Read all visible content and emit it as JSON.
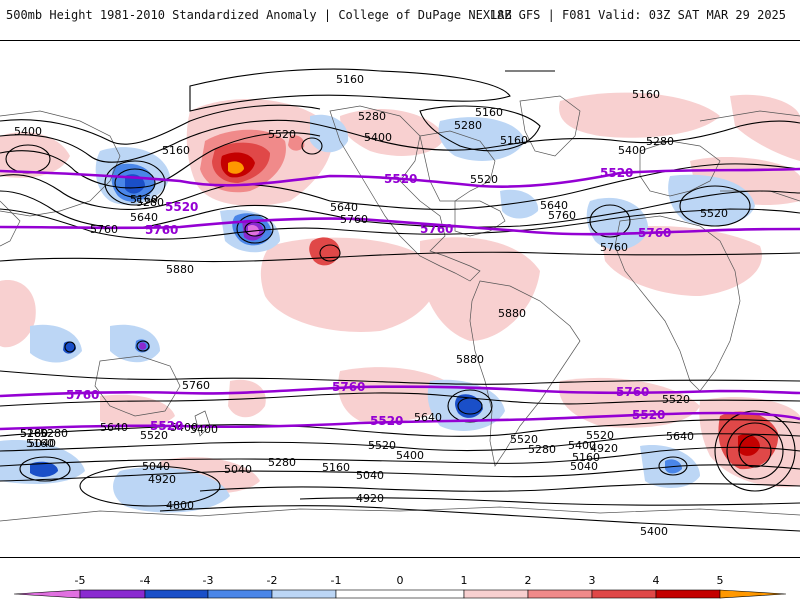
{
  "header": {
    "title": "500mb Height 1981-2010 Standardized Anomaly | College of DuPage NEXLAB",
    "run": "18Z GFS | F081 Valid: 03Z SAT MAR 29 2025"
  },
  "colors": {
    "neg5": "#e070e0",
    "neg4": "#8a2ad0",
    "neg3": "#1a4fc8",
    "neg2": "#4a86e8",
    "neg1": "#bcd6f5",
    "zero": "#ffffff",
    "pos1": "#f8d0d0",
    "pos2": "#f08a8a",
    "pos3": "#e04848",
    "pos4": "#c40000",
    "pos5": "#ff9800",
    "contour": "#000000",
    "highlight": "#9400d3"
  },
  "map": {
    "contour_labels": [
      {
        "id": "l1",
        "text": "5160"
      },
      {
        "id": "l2",
        "text": "5160"
      },
      {
        "id": "l3",
        "text": "5400"
      },
      {
        "id": "l4",
        "text": "5160"
      },
      {
        "id": "l5",
        "text": "5280"
      },
      {
        "id": "l6",
        "text": "5520"
      },
      {
        "id": "l7",
        "text": "5280"
      },
      {
        "id": "l8",
        "text": "5400"
      },
      {
        "id": "l9",
        "text": "5160"
      },
      {
        "id": "l10",
        "text": "5160"
      },
      {
        "id": "l11",
        "text": "5280"
      },
      {
        "id": "l12",
        "text": "5400"
      },
      {
        "id": "l13",
        "text": "5520"
      },
      {
        "id": "l14",
        "text": "5640"
      },
      {
        "id": "l15",
        "text": "5760"
      },
      {
        "id": "l16",
        "text": "5640"
      },
      {
        "id": "l17",
        "text": "5760"
      },
      {
        "id": "l18",
        "text": "5760"
      },
      {
        "id": "l19",
        "text": "5520"
      },
      {
        "id": "l20",
        "text": "5880"
      },
      {
        "id": "l21",
        "text": "5880"
      },
      {
        "id": "l22",
        "text": "5880"
      },
      {
        "id": "l23",
        "text": "5160"
      },
      {
        "id": "l24",
        "text": "5280"
      },
      {
        "id": "l25",
        "text": "5640"
      },
      {
        "id": "l26",
        "text": "5760"
      },
      {
        "id": "l27",
        "text": "5760"
      },
      {
        "id": "l28",
        "text": "5640"
      },
      {
        "id": "l29",
        "text": "5520"
      },
      {
        "id": "l30",
        "text": "5400"
      },
      {
        "id": "l31",
        "text": "5280"
      },
      {
        "id": "l32",
        "text": "5160"
      },
      {
        "id": "l33",
        "text": "5640"
      },
      {
        "id": "l34",
        "text": "5520"
      },
      {
        "id": "l35",
        "text": "5400"
      },
      {
        "id": "l36",
        "text": "5520"
      },
      {
        "id": "l37",
        "text": "5400"
      },
      {
        "id": "l38",
        "text": "5280"
      },
      {
        "id": "l39",
        "text": "5160"
      },
      {
        "id": "l40",
        "text": "5040"
      },
      {
        "id": "l41",
        "text": "5040"
      },
      {
        "id": "l42",
        "text": "4920"
      },
      {
        "id": "l43",
        "text": "4800"
      },
      {
        "id": "l44",
        "text": "5280"
      },
      {
        "id": "l45",
        "text": "5160"
      },
      {
        "id": "l46",
        "text": "5040"
      },
      {
        "id": "l47",
        "text": "4920"
      },
      {
        "id": "l48",
        "text": "5400"
      },
      {
        "id": "l49",
        "text": "5280"
      },
      {
        "id": "l50",
        "text": "5160"
      },
      {
        "id": "l51",
        "text": "5040"
      },
      {
        "id": "l52",
        "text": "5640"
      },
      {
        "id": "l53",
        "text": "5520"
      },
      {
        "id": "l54",
        "text": "5040"
      },
      {
        "id": "l55",
        "text": "4920"
      },
      {
        "id": "l56",
        "text": "5400"
      },
      {
        "id": "l57",
        "text": "5520"
      }
    ],
    "highlight_labels": [
      {
        "id": "h1",
        "text": "5520"
      },
      {
        "id": "h2",
        "text": "5520"
      },
      {
        "id": "h3",
        "text": "5520"
      },
      {
        "id": "h4",
        "text": "5760"
      },
      {
        "id": "h5",
        "text": "5760"
      },
      {
        "id": "h6",
        "text": "5760"
      },
      {
        "id": "h7",
        "text": "5760"
      },
      {
        "id": "h8",
        "text": "5760"
      },
      {
        "id": "h9",
        "text": "5760"
      },
      {
        "id": "h10",
        "text": "5520"
      },
      {
        "id": "h11",
        "text": "5520"
      },
      {
        "id": "h12",
        "text": "5520"
      }
    ]
  },
  "colorbar": {
    "ticks": [
      "-5",
      "-4",
      "-3",
      "-2",
      "-1",
      "0",
      "1",
      "2",
      "3",
      "4",
      "5"
    ]
  }
}
